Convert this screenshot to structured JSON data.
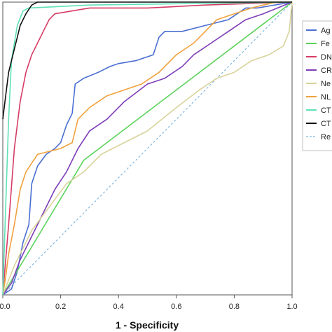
{
  "chart_data": {
    "type": "line",
    "title": "",
    "xlabel": "1 - Specificity",
    "ylabel": "",
    "xlim": [
      0,
      1
    ],
    "ylim": [
      0,
      1
    ],
    "x_ticks": [
      "0.0",
      "0.2",
      "0.4",
      "0.6",
      "0.8",
      "1.0"
    ],
    "grid": false,
    "legend_position": "right",
    "series": [
      {
        "name": "Ag",
        "color": "#4a6fd1",
        "points": [
          [
            0,
            0
          ],
          [
            0.03,
            0.02
          ],
          [
            0.05,
            0.08
          ],
          [
            0.07,
            0.18
          ],
          [
            0.09,
            0.24
          ],
          [
            0.1,
            0.38
          ],
          [
            0.12,
            0.44
          ],
          [
            0.15,
            0.48
          ],
          [
            0.18,
            0.5
          ],
          [
            0.2,
            0.52
          ],
          [
            0.22,
            0.58
          ],
          [
            0.24,
            0.62
          ],
          [
            0.25,
            0.72
          ],
          [
            0.28,
            0.74
          ],
          [
            0.33,
            0.76
          ],
          [
            0.37,
            0.78
          ],
          [
            0.4,
            0.79
          ],
          [
            0.46,
            0.8
          ],
          [
            0.52,
            0.82
          ],
          [
            0.54,
            0.88
          ],
          [
            0.56,
            0.9
          ],
          [
            0.62,
            0.9
          ],
          [
            0.7,
            0.92
          ],
          [
            0.78,
            0.94
          ],
          [
            0.84,
            0.98
          ],
          [
            0.88,
            0.98
          ],
          [
            1,
            1
          ]
        ]
      },
      {
        "name": "Fe",
        "color": "#5dd35d",
        "points": [
          [
            0,
            0
          ],
          [
            0.28,
            0.46
          ],
          [
            1,
            1
          ]
        ]
      },
      {
        "name": "DN",
        "color": "#d63c64",
        "points": [
          [
            0,
            0
          ],
          [
            0.02,
            0.24
          ],
          [
            0.04,
            0.5
          ],
          [
            0.06,
            0.66
          ],
          [
            0.08,
            0.76
          ],
          [
            0.1,
            0.82
          ],
          [
            0.12,
            0.86
          ],
          [
            0.14,
            0.9
          ],
          [
            0.16,
            0.94
          ],
          [
            0.18,
            0.96
          ],
          [
            0.3,
            0.98
          ],
          [
            0.5,
            0.98
          ],
          [
            0.7,
            0.99
          ],
          [
            1,
            1
          ]
        ]
      },
      {
        "name": "CR",
        "color": "#7e3db8",
        "points": [
          [
            0,
            0
          ],
          [
            0.03,
            0.04
          ],
          [
            0.06,
            0.12
          ],
          [
            0.1,
            0.2
          ],
          [
            0.14,
            0.28
          ],
          [
            0.18,
            0.36
          ],
          [
            0.22,
            0.42
          ],
          [
            0.26,
            0.5
          ],
          [
            0.3,
            0.56
          ],
          [
            0.36,
            0.6
          ],
          [
            0.42,
            0.66
          ],
          [
            0.5,
            0.72
          ],
          [
            0.56,
            0.74
          ],
          [
            0.62,
            0.78
          ],
          [
            0.66,
            0.82
          ],
          [
            0.72,
            0.86
          ],
          [
            0.78,
            0.9
          ],
          [
            0.84,
            0.94
          ],
          [
            0.9,
            0.96
          ],
          [
            0.95,
            0.98
          ],
          [
            1,
            1
          ]
        ]
      },
      {
        "name": "Ne",
        "color": "#d9d39c",
        "points": [
          [
            0,
            0
          ],
          [
            0.04,
            0.1
          ],
          [
            0.1,
            0.22
          ],
          [
            0.16,
            0.3
          ],
          [
            0.22,
            0.38
          ],
          [
            0.28,
            0.42
          ],
          [
            0.34,
            0.48
          ],
          [
            0.42,
            0.52
          ],
          [
            0.5,
            0.56
          ],
          [
            0.6,
            0.64
          ],
          [
            0.68,
            0.7
          ],
          [
            0.74,
            0.74
          ],
          [
            0.8,
            0.76
          ],
          [
            0.86,
            0.8
          ],
          [
            0.92,
            0.82
          ],
          [
            0.97,
            0.85
          ],
          [
            0.99,
            0.9
          ],
          [
            1,
            1
          ]
        ]
      },
      {
        "name": "NL",
        "color": "#f0a13c",
        "points": [
          [
            0,
            0
          ],
          [
            0.01,
            0.06
          ],
          [
            0.02,
            0.14
          ],
          [
            0.04,
            0.24
          ],
          [
            0.06,
            0.36
          ],
          [
            0.08,
            0.42
          ],
          [
            0.12,
            0.48
          ],
          [
            0.2,
            0.5
          ],
          [
            0.24,
            0.52
          ],
          [
            0.26,
            0.6
          ],
          [
            0.3,
            0.64
          ],
          [
            0.36,
            0.68
          ],
          [
            0.42,
            0.7
          ],
          [
            0.48,
            0.72
          ],
          [
            0.54,
            0.76
          ],
          [
            0.6,
            0.82
          ],
          [
            0.66,
            0.86
          ],
          [
            0.7,
            0.9
          ],
          [
            0.74,
            0.94
          ],
          [
            0.8,
            0.96
          ],
          [
            0.86,
            0.98
          ],
          [
            0.9,
            0.99
          ],
          [
            0.95,
            1
          ],
          [
            1,
            1
          ]
        ]
      },
      {
        "name": "CT",
        "color": "#5fe0b8",
        "points": [
          [
            0,
            0
          ],
          [
            0.01,
            0.3
          ],
          [
            0.02,
            0.6
          ],
          [
            0.03,
            0.8
          ],
          [
            0.05,
            0.92
          ],
          [
            0.07,
            0.97
          ],
          [
            0.09,
            0.98
          ],
          [
            0.3,
            0.99
          ],
          [
            1,
            1
          ]
        ]
      },
      {
        "name": "CT",
        "color": "#111111",
        "points": [
          [
            0,
            0.6
          ],
          [
            0.01,
            0.68
          ],
          [
            0.02,
            0.76
          ],
          [
            0.03,
            0.8
          ],
          [
            0.04,
            0.84
          ],
          [
            0.05,
            0.88
          ],
          [
            0.06,
            0.92
          ],
          [
            0.08,
            0.96
          ],
          [
            0.1,
            0.99
          ],
          [
            0.12,
            1
          ],
          [
            0.3,
            1
          ],
          [
            1,
            1
          ]
        ]
      },
      {
        "name": "Re",
        "color": "#7fb6df",
        "dashed": true,
        "points": [
          [
            0,
            0
          ],
          [
            1,
            1
          ]
        ]
      }
    ]
  }
}
